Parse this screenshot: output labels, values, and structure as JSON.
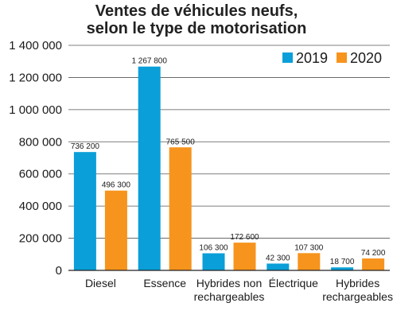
{
  "chart_data": {
    "type": "bar",
    "title_lines": [
      "Ventes de véhicules neufs,",
      "selon le type de motorisation"
    ],
    "categories": [
      [
        "Diesel"
      ],
      [
        "Essence"
      ],
      [
        "Hybrides non",
        "rechargeables"
      ],
      [
        "Électrique"
      ],
      [
        "Hybrides",
        "rechargeables"
      ]
    ],
    "series": [
      {
        "name": "2019",
        "color": "#0a9fd8",
        "values": [
          736200,
          1267800,
          106300,
          42300,
          18700
        ],
        "labels": [
          "736 200",
          "1 267 800",
          "106 300",
          "42 300",
          "18 700"
        ]
      },
      {
        "name": "2020",
        "color": "#f7941d",
        "values": [
          496300,
          765500,
          172600,
          107300,
          74200
        ],
        "labels": [
          "496 300",
          "765 500",
          "172 600",
          "107 300",
          "74 200"
        ]
      }
    ],
    "yticks": [
      0,
      200000,
      400000,
      600000,
      800000,
      1000000,
      1200000,
      1400000
    ],
    "ytick_labels": [
      "0",
      "200 000",
      "400 000",
      "600 000",
      "800 000",
      "1 000 000",
      "1 200 000",
      "1 400 000"
    ],
    "ylim": [
      0,
      1400000
    ],
    "grid": true,
    "legend_position": "top-right"
  }
}
